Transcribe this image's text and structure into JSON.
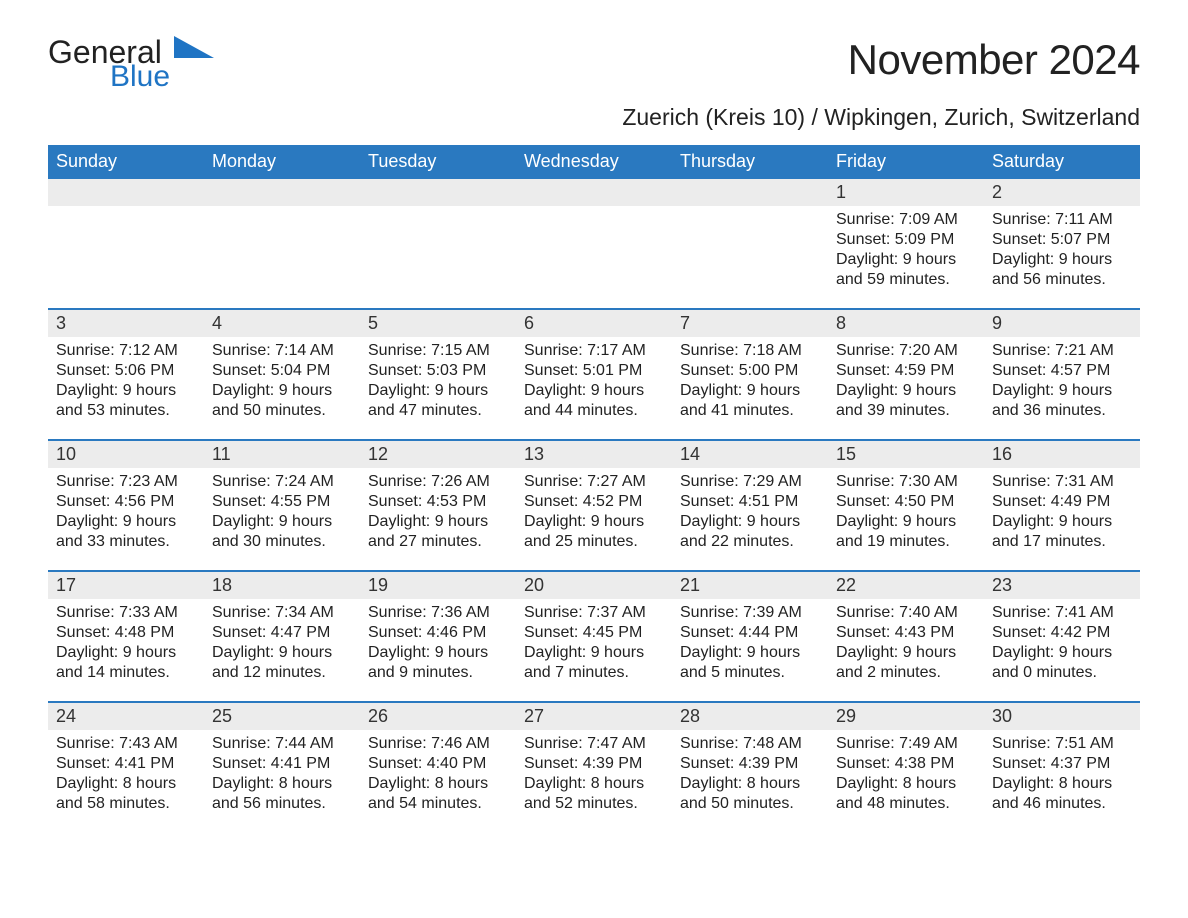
{
  "logo": {
    "word1": "General",
    "word2": "Blue",
    "accent_color": "#1f74c4",
    "text_color": "#222222"
  },
  "title": "November 2024",
  "location": "Zuerich (Kreis 10) / Wipkingen, Zurich, Switzerland",
  "colors": {
    "header_bg": "#2a79c0",
    "header_text": "#ffffff",
    "strip_bg": "#ececec",
    "week_divider": "#2a79c0",
    "body_text": "#222222",
    "page_bg": "#ffffff"
  },
  "weekdays": [
    "Sunday",
    "Monday",
    "Tuesday",
    "Wednesday",
    "Thursday",
    "Friday",
    "Saturday"
  ],
  "weeks": [
    [
      {
        "empty": true
      },
      {
        "empty": true
      },
      {
        "empty": true
      },
      {
        "empty": true
      },
      {
        "empty": true
      },
      {
        "num": "1",
        "sunrise": "Sunrise: 7:09 AM",
        "sunset": "Sunset: 5:09 PM",
        "day1": "Daylight: 9 hours",
        "day2": "and 59 minutes."
      },
      {
        "num": "2",
        "sunrise": "Sunrise: 7:11 AM",
        "sunset": "Sunset: 5:07 PM",
        "day1": "Daylight: 9 hours",
        "day2": "and 56 minutes."
      }
    ],
    [
      {
        "num": "3",
        "sunrise": "Sunrise: 7:12 AM",
        "sunset": "Sunset: 5:06 PM",
        "day1": "Daylight: 9 hours",
        "day2": "and 53 minutes."
      },
      {
        "num": "4",
        "sunrise": "Sunrise: 7:14 AM",
        "sunset": "Sunset: 5:04 PM",
        "day1": "Daylight: 9 hours",
        "day2": "and 50 minutes."
      },
      {
        "num": "5",
        "sunrise": "Sunrise: 7:15 AM",
        "sunset": "Sunset: 5:03 PM",
        "day1": "Daylight: 9 hours",
        "day2": "and 47 minutes."
      },
      {
        "num": "6",
        "sunrise": "Sunrise: 7:17 AM",
        "sunset": "Sunset: 5:01 PM",
        "day1": "Daylight: 9 hours",
        "day2": "and 44 minutes."
      },
      {
        "num": "7",
        "sunrise": "Sunrise: 7:18 AM",
        "sunset": "Sunset: 5:00 PM",
        "day1": "Daylight: 9 hours",
        "day2": "and 41 minutes."
      },
      {
        "num": "8",
        "sunrise": "Sunrise: 7:20 AM",
        "sunset": "Sunset: 4:59 PM",
        "day1": "Daylight: 9 hours",
        "day2": "and 39 minutes."
      },
      {
        "num": "9",
        "sunrise": "Sunrise: 7:21 AM",
        "sunset": "Sunset: 4:57 PM",
        "day1": "Daylight: 9 hours",
        "day2": "and 36 minutes."
      }
    ],
    [
      {
        "num": "10",
        "sunrise": "Sunrise: 7:23 AM",
        "sunset": "Sunset: 4:56 PM",
        "day1": "Daylight: 9 hours",
        "day2": "and 33 minutes."
      },
      {
        "num": "11",
        "sunrise": "Sunrise: 7:24 AM",
        "sunset": "Sunset: 4:55 PM",
        "day1": "Daylight: 9 hours",
        "day2": "and 30 minutes."
      },
      {
        "num": "12",
        "sunrise": "Sunrise: 7:26 AM",
        "sunset": "Sunset: 4:53 PM",
        "day1": "Daylight: 9 hours",
        "day2": "and 27 minutes."
      },
      {
        "num": "13",
        "sunrise": "Sunrise: 7:27 AM",
        "sunset": "Sunset: 4:52 PM",
        "day1": "Daylight: 9 hours",
        "day2": "and 25 minutes."
      },
      {
        "num": "14",
        "sunrise": "Sunrise: 7:29 AM",
        "sunset": "Sunset: 4:51 PM",
        "day1": "Daylight: 9 hours",
        "day2": "and 22 minutes."
      },
      {
        "num": "15",
        "sunrise": "Sunrise: 7:30 AM",
        "sunset": "Sunset: 4:50 PM",
        "day1": "Daylight: 9 hours",
        "day2": "and 19 minutes."
      },
      {
        "num": "16",
        "sunrise": "Sunrise: 7:31 AM",
        "sunset": "Sunset: 4:49 PM",
        "day1": "Daylight: 9 hours",
        "day2": "and 17 minutes."
      }
    ],
    [
      {
        "num": "17",
        "sunrise": "Sunrise: 7:33 AM",
        "sunset": "Sunset: 4:48 PM",
        "day1": "Daylight: 9 hours",
        "day2": "and 14 minutes."
      },
      {
        "num": "18",
        "sunrise": "Sunrise: 7:34 AM",
        "sunset": "Sunset: 4:47 PM",
        "day1": "Daylight: 9 hours",
        "day2": "and 12 minutes."
      },
      {
        "num": "19",
        "sunrise": "Sunrise: 7:36 AM",
        "sunset": "Sunset: 4:46 PM",
        "day1": "Daylight: 9 hours",
        "day2": "and 9 minutes."
      },
      {
        "num": "20",
        "sunrise": "Sunrise: 7:37 AM",
        "sunset": "Sunset: 4:45 PM",
        "day1": "Daylight: 9 hours",
        "day2": "and 7 minutes."
      },
      {
        "num": "21",
        "sunrise": "Sunrise: 7:39 AM",
        "sunset": "Sunset: 4:44 PM",
        "day1": "Daylight: 9 hours",
        "day2": "and 5 minutes."
      },
      {
        "num": "22",
        "sunrise": "Sunrise: 7:40 AM",
        "sunset": "Sunset: 4:43 PM",
        "day1": "Daylight: 9 hours",
        "day2": "and 2 minutes."
      },
      {
        "num": "23",
        "sunrise": "Sunrise: 7:41 AM",
        "sunset": "Sunset: 4:42 PM",
        "day1": "Daylight: 9 hours",
        "day2": "and 0 minutes."
      }
    ],
    [
      {
        "num": "24",
        "sunrise": "Sunrise: 7:43 AM",
        "sunset": "Sunset: 4:41 PM",
        "day1": "Daylight: 8 hours",
        "day2": "and 58 minutes."
      },
      {
        "num": "25",
        "sunrise": "Sunrise: 7:44 AM",
        "sunset": "Sunset: 4:41 PM",
        "day1": "Daylight: 8 hours",
        "day2": "and 56 minutes."
      },
      {
        "num": "26",
        "sunrise": "Sunrise: 7:46 AM",
        "sunset": "Sunset: 4:40 PM",
        "day1": "Daylight: 8 hours",
        "day2": "and 54 minutes."
      },
      {
        "num": "27",
        "sunrise": "Sunrise: 7:47 AM",
        "sunset": "Sunset: 4:39 PM",
        "day1": "Daylight: 8 hours",
        "day2": "and 52 minutes."
      },
      {
        "num": "28",
        "sunrise": "Sunrise: 7:48 AM",
        "sunset": "Sunset: 4:39 PM",
        "day1": "Daylight: 8 hours",
        "day2": "and 50 minutes."
      },
      {
        "num": "29",
        "sunrise": "Sunrise: 7:49 AM",
        "sunset": "Sunset: 4:38 PM",
        "day1": "Daylight: 8 hours",
        "day2": "and 48 minutes."
      },
      {
        "num": "30",
        "sunrise": "Sunrise: 7:51 AM",
        "sunset": "Sunset: 4:37 PM",
        "day1": "Daylight: 8 hours",
        "day2": "and 46 minutes."
      }
    ]
  ]
}
